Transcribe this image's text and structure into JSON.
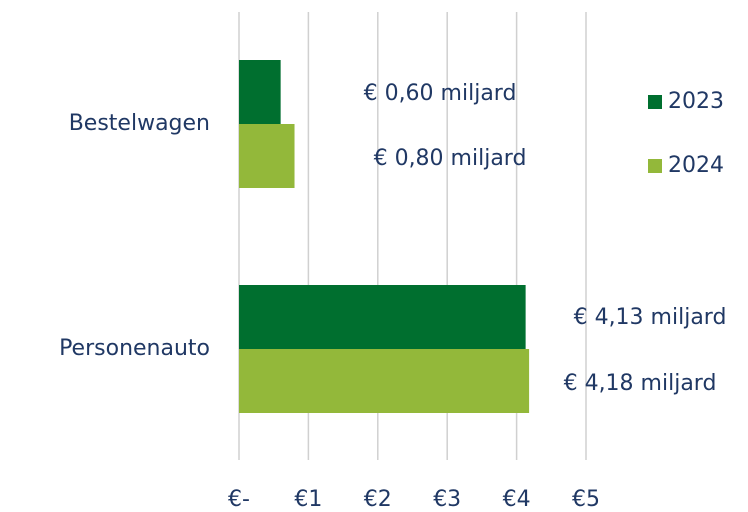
{
  "chart_data": {
    "type": "barh",
    "categories": [
      "Bestelwagen",
      "Personenauto"
    ],
    "series": [
      {
        "name": "2023",
        "color": "#006f2f",
        "values": [
          0.6,
          4.13
        ],
        "value_labels": [
          "€ 0,60 miljard",
          "€ 4,13 miljard"
        ]
      },
      {
        "name": "2024",
        "color": "#93b83a",
        "values": [
          0.8,
          4.18
        ],
        "value_labels": [
          "€ 0,80 miljard",
          "€ 4,18 miljard"
        ]
      }
    ],
    "xlim": [
      0,
      5
    ],
    "xticks": [
      {
        "value": 0,
        "label": "€-"
      },
      {
        "value": 1,
        "label": "€1"
      },
      {
        "value": 2,
        "label": "€2"
      },
      {
        "value": 3,
        "label": "€3"
      },
      {
        "value": 4,
        "label": "€4"
      },
      {
        "value": 5,
        "label": "€5"
      }
    ],
    "grid": true
  }
}
